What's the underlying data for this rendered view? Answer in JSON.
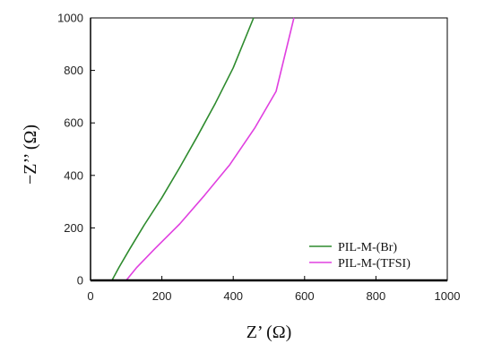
{
  "chart_data": {
    "type": "line",
    "title": "",
    "xlabel": "Z’ (Ω)",
    "ylabel": "−Z’’ (Ω)",
    "xlim": [
      0,
      1000
    ],
    "ylim": [
      0,
      1000
    ],
    "xticks": [
      0,
      200,
      400,
      600,
      800,
      1000
    ],
    "yticks": [
      0,
      200,
      400,
      600,
      800,
      1000
    ],
    "grid": false,
    "legend_position": "bottom-right",
    "series": [
      {
        "name": "PIL-M-(Br)",
        "color": "#2e8b2e",
        "x": [
          60,
          80,
          110,
          150,
          200,
          250,
          300,
          350,
          400,
          457
        ],
        "y": [
          0,
          50,
          120,
          210,
          315,
          430,
          550,
          675,
          810,
          1000
        ]
      },
      {
        "name": "PIL-M-(TFSI)",
        "color": "#e040e0",
        "x": [
          100,
          130,
          180,
          250,
          320,
          390,
          460,
          520,
          570
        ],
        "y": [
          0,
          50,
          120,
          215,
          325,
          440,
          580,
          720,
          1000
        ]
      }
    ]
  }
}
